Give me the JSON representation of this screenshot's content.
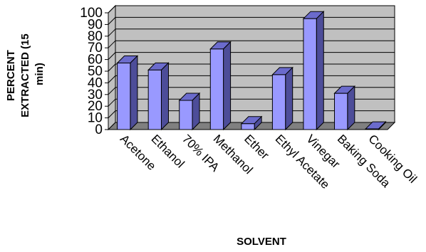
{
  "chart_data": {
    "type": "bar",
    "title": "",
    "xlabel": "SOLVENT",
    "ylabel_lines": [
      "PERCENT",
      "EXTRACTED (15",
      "min)"
    ],
    "categories": [
      "Acetone",
      "Ethanol",
      "70% IPA",
      "Methanol",
      "Ether",
      "Ethyl Acetate",
      "Vinegar",
      "Baking Soda",
      "Cooking Oil"
    ],
    "values": [
      57,
      51,
      25,
      69,
      5,
      47,
      95,
      31,
      0.5
    ],
    "ylim": [
      0,
      100
    ],
    "yticks": [
      "0",
      "10",
      "20",
      "30",
      "40",
      "50",
      "60",
      "70",
      "80",
      "90",
      "100"
    ],
    "grid": true,
    "legend": "none",
    "colors": {
      "bar_front": "#9999ff",
      "bar_side": "#4d4d99",
      "bar_top": "#6b6bcc",
      "wall": "#c0c0c0",
      "floor": "#808080",
      "grid": "#000000"
    }
  }
}
